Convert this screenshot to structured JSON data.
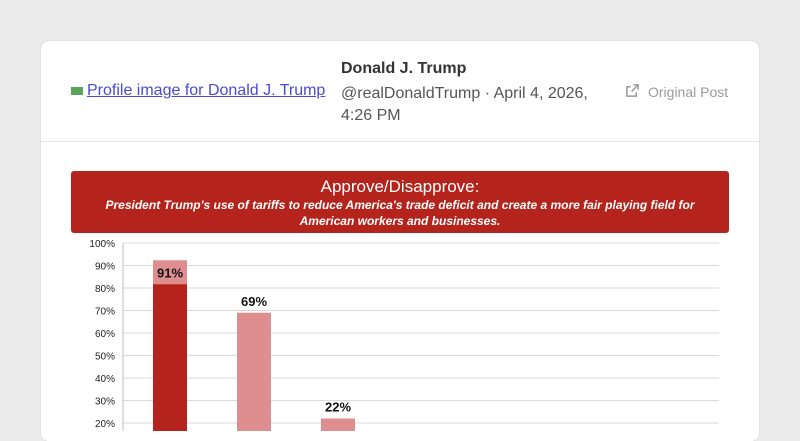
{
  "post": {
    "avatar_alt": "Profile image for Donald J. Trump",
    "author_name": "Donald J. Trump",
    "handle_date": "@realDonaldTrump · April 4, 2026,",
    "time": "4:26 PM",
    "original_post_label": "Original Post"
  },
  "icons": {
    "external_link": "external-link-icon"
  },
  "chart_data": {
    "type": "bar",
    "title": "Approve/Disapprove:",
    "subtitle": "President Trump's use of tariffs to reduce America's trade deficit and create a more fair playing field for American workers and businesses.",
    "ylim": [
      0,
      100
    ],
    "yticks": [
      "20%",
      "30%",
      "40%",
      "50%",
      "60%",
      "70%",
      "80%",
      "90%",
      "100%"
    ],
    "bars": [
      {
        "value": 91,
        "label": "91%",
        "color": "#b5241c"
      },
      {
        "value": 69,
        "label": "69%",
        "color": "#df8e8f"
      },
      {
        "value": 22,
        "label": "22%",
        "color": "#df8e8f"
      }
    ],
    "colors": {
      "banner": "#b5241c",
      "approve": "#b5241c",
      "light": "#df8e8f"
    }
  }
}
